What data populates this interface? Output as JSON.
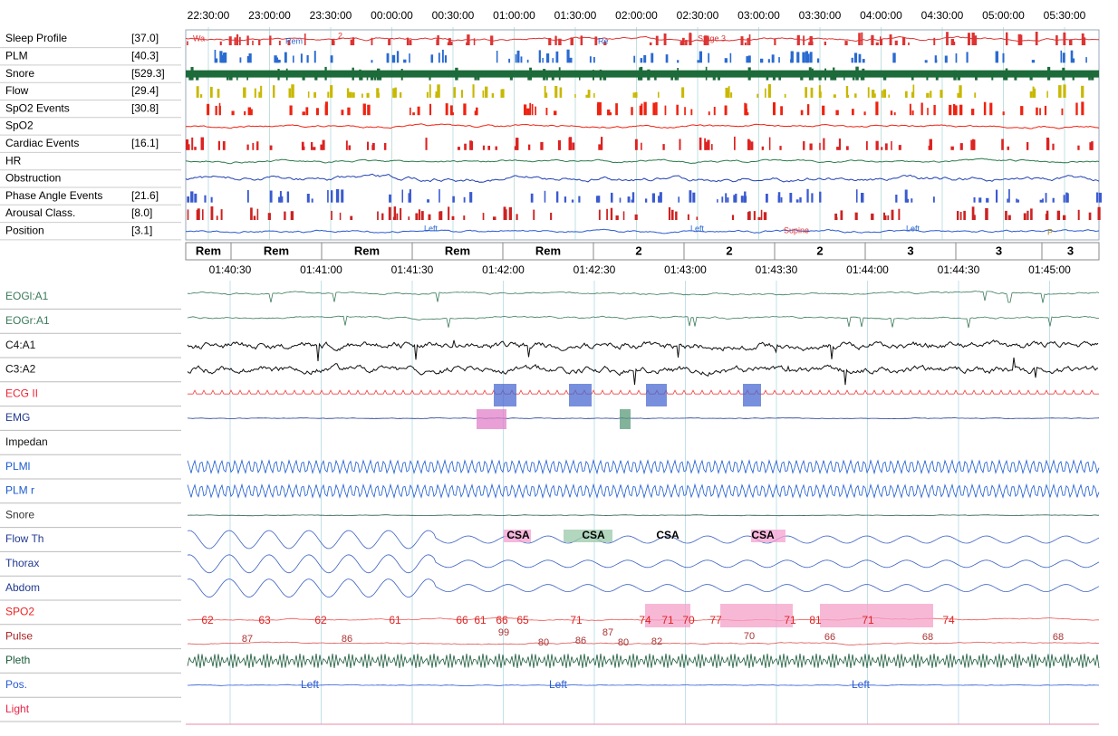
{
  "overview": {
    "time_labels": [
      "22:30:00",
      "23:00:00",
      "23:30:00",
      "00:00:00",
      "00:30:00",
      "01:00:00",
      "01:30:00",
      "02:00:00",
      "02:30:00",
      "03:00:00",
      "03:30:00",
      "04:00:00",
      "04:30:00",
      "05:00:00",
      "05:30:00"
    ],
    "channels": [
      {
        "label": "Sleep Profile",
        "value": "[37.0]"
      },
      {
        "label": "PLM",
        "value": "[40.3]"
      },
      {
        "label": "Snore",
        "value": "[529.3]"
      },
      {
        "label": "Flow",
        "value": "[29.4]"
      },
      {
        "label": "SpO2 Events",
        "value": "[30.8]"
      },
      {
        "label": "SpO2"
      },
      {
        "label": "Cardiac Events",
        "value": "[16.1]"
      },
      {
        "label": "HR"
      },
      {
        "label": "Obstruction"
      },
      {
        "label": "Phase Angle Events",
        "value": "[21.6]"
      },
      {
        "label": "Arousal Class.",
        "value": "[8.0]"
      },
      {
        "label": "Position",
        "value": "[3.1]"
      }
    ],
    "annotations": [
      "Wa",
      "Rem",
      "2",
      "Re",
      "Stage 3",
      "Left",
      "Left",
      "Supine",
      "Left",
      "P"
    ],
    "stages": [
      "Rem",
      "Rem",
      "Rem",
      "Rem",
      "Rem",
      "2",
      "2",
      "2",
      "3",
      "3",
      "3"
    ]
  },
  "detail": {
    "time_labels": [
      "01:40:30",
      "01:41:00",
      "01:41:30",
      "01:42:00",
      "01:42:30",
      "01:43:00",
      "01:43:30",
      "01:44:00",
      "01:44:30",
      "01:45:00"
    ],
    "channels": [
      "EOGl:A1",
      "EOGr:A1",
      "C4:A1",
      "C3:A2",
      "ECG II",
      "EMG",
      "Impedan",
      "PLMl",
      "PLM r",
      "Snore",
      "Flow Th",
      "Thorax",
      "Abdom",
      "SPO2",
      "Pulse",
      "Pleth",
      "Pos.",
      "Light"
    ],
    "events": [
      "CSA",
      "CSA",
      "CSA",
      "CSA"
    ],
    "spo2_labels": [
      "62",
      "63",
      "62",
      "61",
      "66",
      "61",
      "66",
      "65",
      "71",
      "74",
      "71",
      "70",
      "77",
      "71",
      "81",
      "71",
      "74"
    ],
    "pulse_labels": [
      "87",
      "86",
      "99",
      "80",
      "86",
      "87",
      "80",
      "82",
      "70",
      "66",
      "68",
      "68"
    ],
    "position_labels": [
      "Left",
      "Left",
      "Left"
    ]
  }
}
